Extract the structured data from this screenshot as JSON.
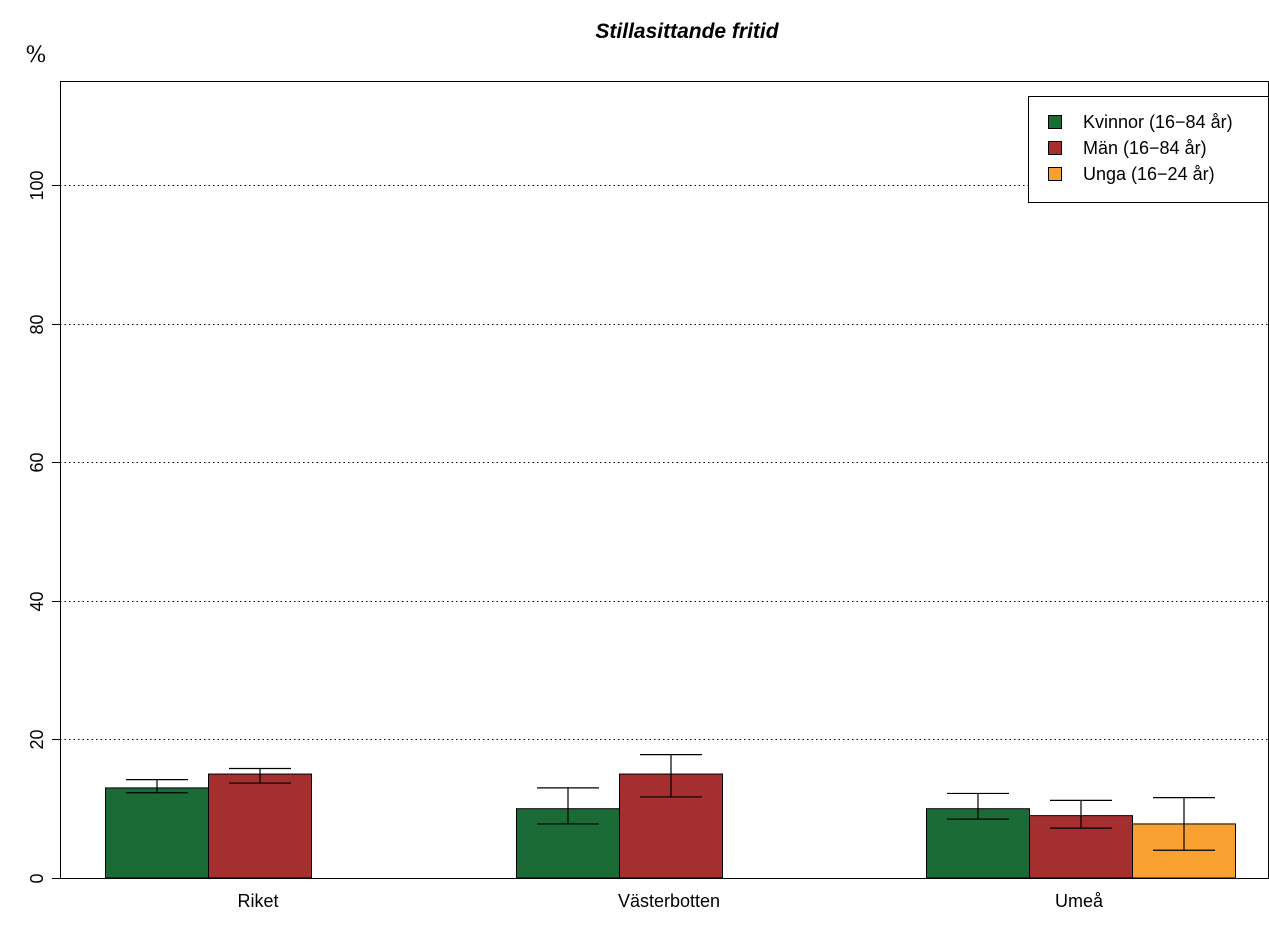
{
  "chart_data": {
    "type": "bar",
    "title": "Stillasittande fritid",
    "ylabel": "%",
    "xlabel": "",
    "ylim": [
      0,
      115
    ],
    "yticks": [
      0,
      20,
      40,
      60,
      80,
      100
    ],
    "grid": "horizontal dotted",
    "legend_position": "top-right",
    "categories": [
      "Riket",
      "Västerbotten",
      "Umeå"
    ],
    "series": [
      {
        "name": "Kvinnor (16−84 år)",
        "color": "#1b6b37",
        "values": [
          13.0,
          10.0,
          10.0
        ],
        "ci_low": [
          12.3,
          7.8,
          8.5
        ],
        "ci_high": [
          14.2,
          13.0,
          12.2
        ]
      },
      {
        "name": "Män (16−84 år)",
        "color": "#a52f2f",
        "values": [
          15.0,
          15.0,
          9.0
        ],
        "ci_low": [
          13.7,
          11.7,
          7.2
        ],
        "ci_high": [
          15.8,
          17.8,
          11.2
        ]
      },
      {
        "name": "Unga (16−24 år)",
        "color": "#f8a131",
        "values": [
          null,
          null,
          7.8
        ],
        "ci_low": [
          null,
          null,
          4.0
        ],
        "ci_high": [
          null,
          null,
          11.6
        ]
      }
    ]
  }
}
